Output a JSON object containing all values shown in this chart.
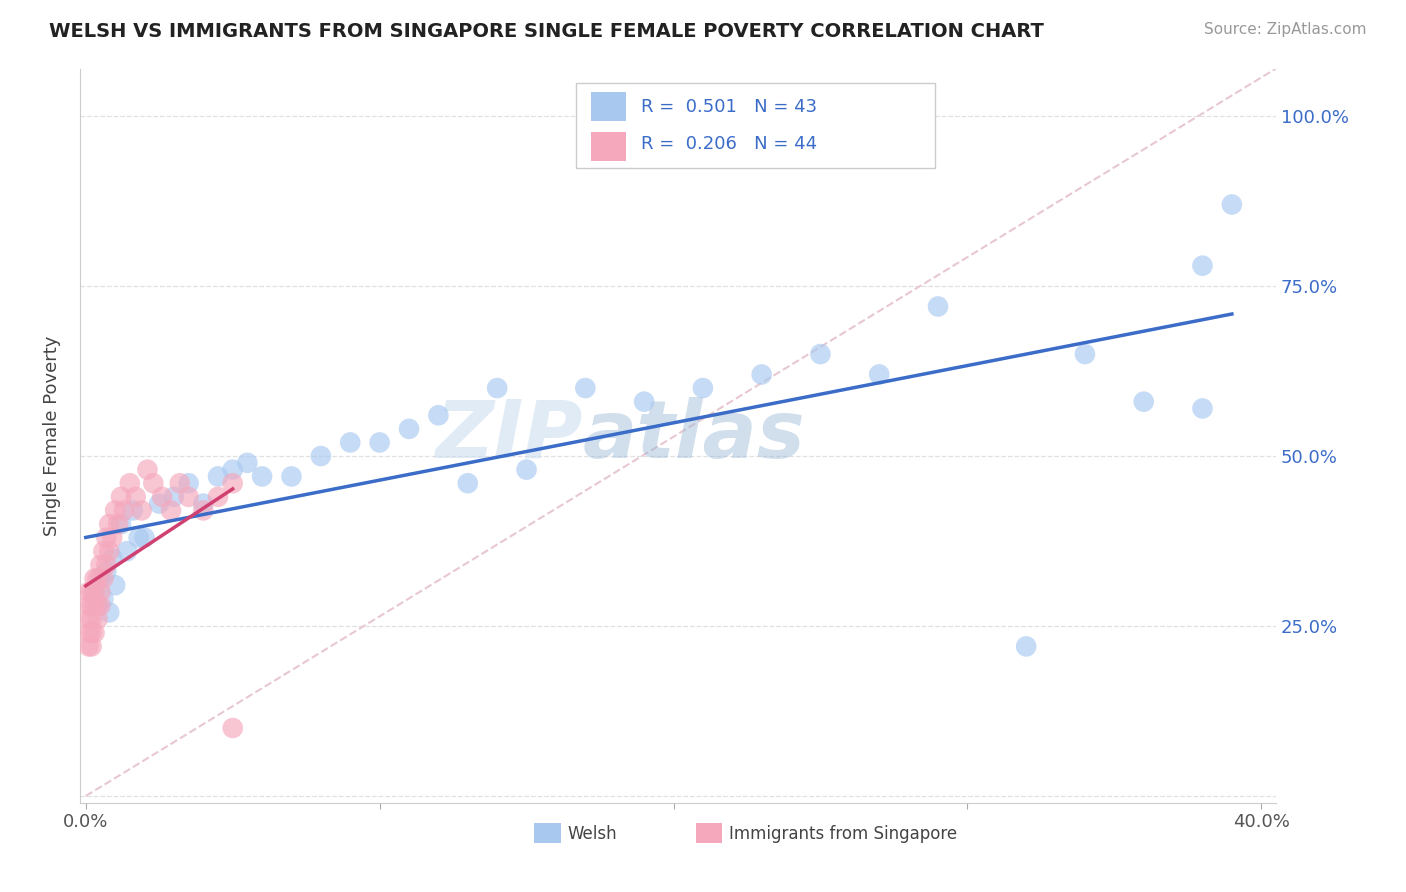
{
  "title": "WELSH VS IMMIGRANTS FROM SINGAPORE SINGLE FEMALE POVERTY CORRELATION CHART",
  "source": "Source: ZipAtlas.com",
  "ylabel": "Single Female Poverty",
  "xlim": [
    -0.002,
    0.405
  ],
  "ylim": [
    -0.01,
    1.07
  ],
  "yticks": [
    0.0,
    0.25,
    0.5,
    0.75,
    1.0
  ],
  "ytick_labels": [
    "",
    "25.0%",
    "50.0%",
    "75.0%",
    "100.0%"
  ],
  "xticks": [
    0.0,
    0.1,
    0.2,
    0.3,
    0.4
  ],
  "xtick_display": [
    "0.0%",
    "",
    "",
    "",
    "40.0%"
  ],
  "welsh_R": 0.501,
  "welsh_N": 43,
  "singapore_R": 0.206,
  "singapore_N": 44,
  "welsh_color": "#A8C8F0",
  "singapore_color": "#F5A8BC",
  "line_color_welsh": "#3B6CC8",
  "line_color_singapore": "#D04070",
  "diagonal_color": "#E8C8D0",
  "background_color": "#FFFFFF",
  "grid_color": "#E0E0E0",
  "watermark_zip": "ZIP",
  "watermark_atlas": "atlas",
  "legend_label_welsh": "Welsh",
  "legend_label_singapore": "Immigrants from Singapore",
  "welsh_x": [
    0.003,
    0.004,
    0.005,
    0.006,
    0.007,
    0.008,
    0.009,
    0.01,
    0.012,
    0.014,
    0.016,
    0.018,
    0.02,
    0.025,
    0.03,
    0.035,
    0.04,
    0.045,
    0.05,
    0.055,
    0.06,
    0.07,
    0.08,
    0.09,
    0.1,
    0.11,
    0.12,
    0.13,
    0.14,
    0.15,
    0.17,
    0.19,
    0.21,
    0.23,
    0.25,
    0.27,
    0.29,
    0.32,
    0.34,
    0.36,
    0.38,
    0.39,
    0.38
  ],
  "welsh_y": [
    0.3,
    0.28,
    0.32,
    0.29,
    0.33,
    0.27,
    0.35,
    0.31,
    0.4,
    0.36,
    0.42,
    0.38,
    0.38,
    0.43,
    0.44,
    0.46,
    0.43,
    0.47,
    0.48,
    0.49,
    0.47,
    0.47,
    0.5,
    0.52,
    0.52,
    0.54,
    0.56,
    0.46,
    0.6,
    0.48,
    0.6,
    0.58,
    0.6,
    0.62,
    0.65,
    0.62,
    0.72,
    0.22,
    0.65,
    0.58,
    0.78,
    0.87,
    0.57
  ],
  "singapore_x": [
    0.001,
    0.001,
    0.001,
    0.001,
    0.001,
    0.002,
    0.002,
    0.002,
    0.002,
    0.002,
    0.003,
    0.003,
    0.003,
    0.003,
    0.004,
    0.004,
    0.004,
    0.005,
    0.005,
    0.005,
    0.006,
    0.006,
    0.007,
    0.007,
    0.008,
    0.008,
    0.009,
    0.01,
    0.011,
    0.012,
    0.013,
    0.015,
    0.017,
    0.019,
    0.021,
    0.023,
    0.026,
    0.029,
    0.032,
    0.035,
    0.04,
    0.045,
    0.05,
    0.05
  ],
  "singapore_y": [
    0.28,
    0.3,
    0.26,
    0.24,
    0.22,
    0.3,
    0.28,
    0.26,
    0.24,
    0.22,
    0.32,
    0.3,
    0.28,
    0.24,
    0.32,
    0.28,
    0.26,
    0.34,
    0.3,
    0.28,
    0.36,
    0.32,
    0.38,
    0.34,
    0.4,
    0.36,
    0.38,
    0.42,
    0.4,
    0.44,
    0.42,
    0.46,
    0.44,
    0.42,
    0.48,
    0.46,
    0.44,
    0.42,
    0.46,
    0.44,
    0.42,
    0.44,
    0.46,
    0.1
  ]
}
